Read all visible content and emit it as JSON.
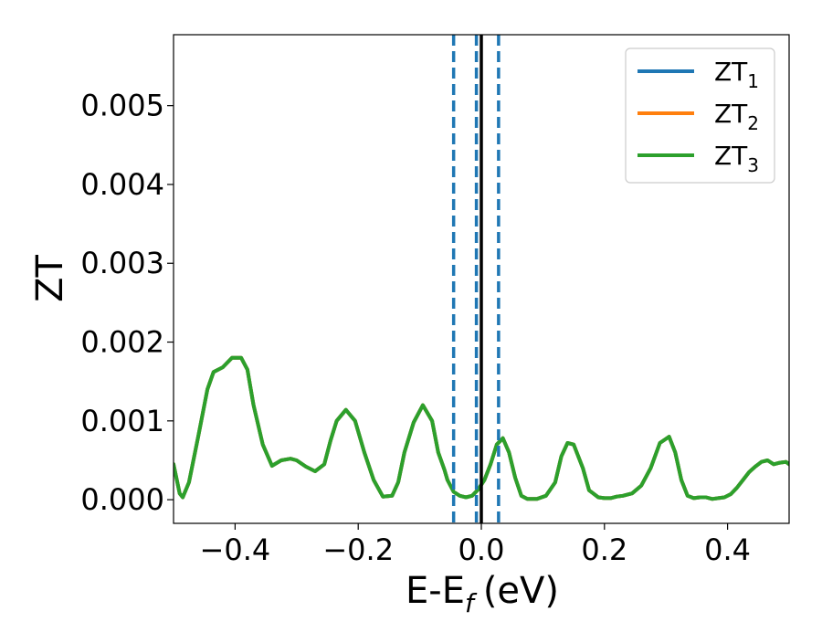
{
  "chart_data": {
    "type": "line",
    "xlabel": "E-E",
    "xlabel_subscript": "f",
    "xlabel_unit": "(eV)",
    "ylabel": "ZT",
    "xlim": [
      -0.5,
      0.5
    ],
    "ylim": [
      -0.0003,
      0.0059
    ],
    "grid": false,
    "legend_position": "top-right",
    "x_ticks": [
      -0.4,
      -0.2,
      0.0,
      0.2,
      0.4
    ],
    "x_tick_labels": [
      "−0.4",
      "−0.2",
      "0.0",
      "0.2",
      "0.4"
    ],
    "y_ticks": [
      0.0,
      0.001,
      0.002,
      0.003,
      0.004,
      0.005
    ],
    "y_tick_labels": [
      "0.000",
      "0.001",
      "0.002",
      "0.003",
      "0.004",
      "0.005"
    ],
    "x": [
      -0.5,
      -0.49,
      -0.485,
      -0.475,
      -0.46,
      -0.445,
      -0.435,
      -0.42,
      -0.405,
      -0.39,
      -0.38,
      -0.37,
      -0.355,
      -0.34,
      -0.325,
      -0.31,
      -0.3,
      -0.285,
      -0.27,
      -0.255,
      -0.245,
      -0.235,
      -0.22,
      -0.205,
      -0.19,
      -0.175,
      -0.16,
      -0.145,
      -0.135,
      -0.125,
      -0.11,
      -0.095,
      -0.08,
      -0.07,
      -0.06,
      -0.055,
      -0.045,
      -0.035,
      -0.025,
      -0.015,
      -0.005,
      0.005,
      0.015,
      0.025,
      0.035,
      0.045,
      0.055,
      0.065,
      0.075,
      0.09,
      0.105,
      0.12,
      0.13,
      0.14,
      0.15,
      0.165,
      0.175,
      0.19,
      0.2,
      0.21,
      0.22,
      0.23,
      0.245,
      0.26,
      0.275,
      0.29,
      0.305,
      0.315,
      0.325,
      0.335,
      0.345,
      0.355,
      0.365,
      0.375,
      0.385,
      0.395,
      0.405,
      0.415,
      0.425,
      0.435,
      0.445,
      0.455,
      0.465,
      0.475,
      0.485,
      0.495,
      0.5
    ],
    "series": [
      {
        "name": "ZT",
        "name_subscript": "1",
        "color": "#1f77b4",
        "values": [
          0.00045,
          8e-05,
          3e-05,
          0.00022,
          0.0008,
          0.0014,
          0.00162,
          0.00168,
          0.0018,
          0.0018,
          0.00165,
          0.0012,
          0.0007,
          0.00043,
          0.0005,
          0.00052,
          0.0005,
          0.00042,
          0.00036,
          0.00045,
          0.00075,
          0.001,
          0.00114,
          0.001,
          0.0006,
          0.00025,
          4e-05,
          5e-05,
          0.00022,
          0.0006,
          0.00098,
          0.0012,
          0.001,
          0.0006,
          0.00038,
          0.00025,
          0.0001,
          5e-05,
          3e-05,
          5e-05,
          0.00013,
          0.00025,
          0.00045,
          0.0007,
          0.00078,
          0.0006,
          0.00028,
          5e-05,
          1e-05,
          1e-05,
          5e-05,
          0.00022,
          0.00055,
          0.00072,
          0.0007,
          0.0004,
          0.00012,
          3e-05,
          2e-05,
          2e-05,
          4e-05,
          5e-05,
          8e-05,
          0.00018,
          0.0004,
          0.00072,
          0.0008,
          0.0006,
          0.00025,
          5e-05,
          2e-05,
          3e-05,
          3e-05,
          1e-05,
          2e-05,
          3e-05,
          7e-05,
          0.00015,
          0.00025,
          0.00035,
          0.00042,
          0.00048,
          0.0005,
          0.00045,
          0.00047,
          0.00048,
          0.00045
        ]
      },
      {
        "name": "ZT",
        "name_subscript": "2",
        "color": "#ff7f0e",
        "values": [
          0.00045,
          8e-05,
          3e-05,
          0.00022,
          0.0008,
          0.0014,
          0.00162,
          0.00168,
          0.0018,
          0.0018,
          0.00165,
          0.0012,
          0.0007,
          0.00043,
          0.0005,
          0.00052,
          0.0005,
          0.00042,
          0.00036,
          0.00045,
          0.00075,
          0.001,
          0.00114,
          0.001,
          0.0006,
          0.00025,
          4e-05,
          5e-05,
          0.00022,
          0.0006,
          0.00098,
          0.0012,
          0.001,
          0.0006,
          0.00038,
          0.00025,
          0.0001,
          5e-05,
          3e-05,
          5e-05,
          0.00013,
          0.00025,
          0.00045,
          0.0007,
          0.00078,
          0.0006,
          0.00028,
          5e-05,
          1e-05,
          1e-05,
          5e-05,
          0.00022,
          0.00055,
          0.00072,
          0.0007,
          0.0004,
          0.00012,
          3e-05,
          2e-05,
          2e-05,
          4e-05,
          5e-05,
          8e-05,
          0.00018,
          0.0004,
          0.00072,
          0.0008,
          0.0006,
          0.00025,
          5e-05,
          2e-05,
          3e-05,
          3e-05,
          1e-05,
          2e-05,
          3e-05,
          7e-05,
          0.00015,
          0.00025,
          0.00035,
          0.00042,
          0.00048,
          0.0005,
          0.00045,
          0.00047,
          0.00048,
          0.00045
        ]
      },
      {
        "name": "ZT",
        "name_subscript": "3",
        "color": "#2ca02c",
        "values": [
          0.00045,
          8e-05,
          3e-05,
          0.00022,
          0.0008,
          0.0014,
          0.00162,
          0.00168,
          0.0018,
          0.0018,
          0.00165,
          0.0012,
          0.0007,
          0.00043,
          0.0005,
          0.00052,
          0.0005,
          0.00042,
          0.00036,
          0.00045,
          0.00075,
          0.001,
          0.00114,
          0.001,
          0.0006,
          0.00025,
          4e-05,
          5e-05,
          0.00022,
          0.0006,
          0.00098,
          0.0012,
          0.001,
          0.0006,
          0.00038,
          0.00025,
          0.0001,
          5e-05,
          3e-05,
          5e-05,
          0.00013,
          0.00025,
          0.00045,
          0.0007,
          0.00078,
          0.0006,
          0.00028,
          5e-05,
          1e-05,
          1e-05,
          5e-05,
          0.00022,
          0.00055,
          0.00072,
          0.0007,
          0.0004,
          0.00012,
          3e-05,
          2e-05,
          2e-05,
          4e-05,
          5e-05,
          8e-05,
          0.00018,
          0.0004,
          0.00072,
          0.0008,
          0.0006,
          0.00025,
          5e-05,
          2e-05,
          3e-05,
          3e-05,
          1e-05,
          2e-05,
          3e-05,
          7e-05,
          0.00015,
          0.00025,
          0.00035,
          0.00042,
          0.00048,
          0.0005,
          0.00045,
          0.00047,
          0.00048,
          0.00045
        ]
      }
    ],
    "vlines": [
      {
        "x": -0.045,
        "style": "dashed",
        "color": "#1f77b4"
      },
      {
        "x": -0.008,
        "style": "dashed",
        "color": "#1f77b4"
      },
      {
        "x": 0.0,
        "style": "solid",
        "color": "#000000"
      },
      {
        "x": 0.028,
        "style": "dashed",
        "color": "#1f77b4"
      }
    ]
  }
}
